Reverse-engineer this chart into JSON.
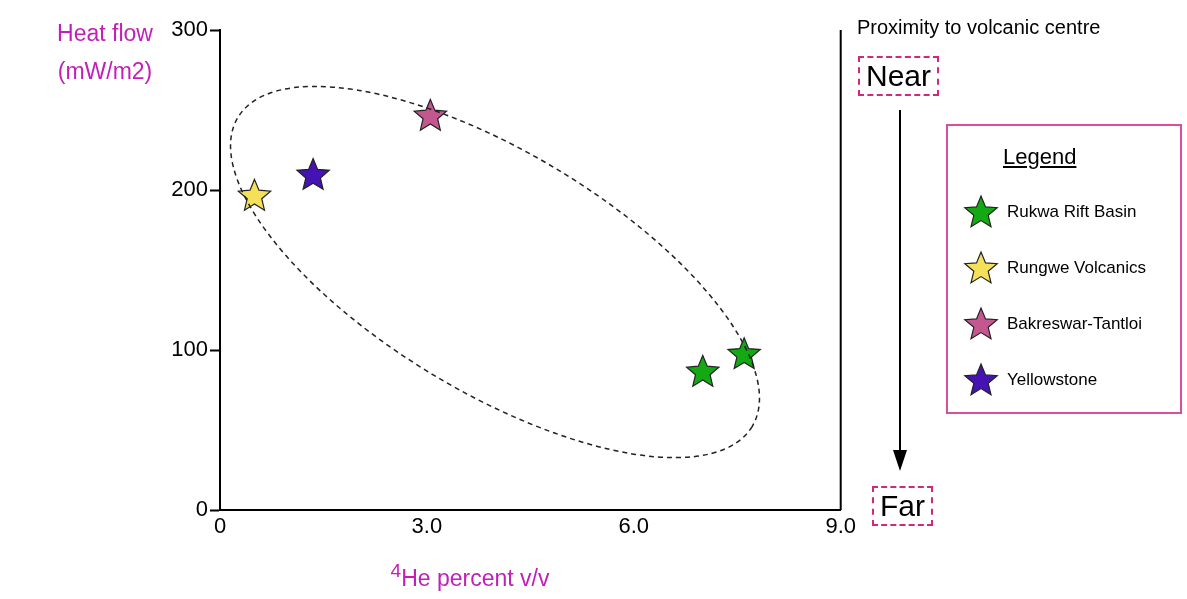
{
  "chart_data": {
    "type": "scatter",
    "xlabel": "$^{4}$He percent v/v",
    "ylabel": "Heat flow (mW/m2)",
    "legend_title": "Legend",
    "xlim": [
      0,
      9
    ],
    "ylim": [
      0,
      300
    ],
    "xticks": [
      0,
      {
        "value": 3,
        "label": "3.0"
      },
      {
        "value": 6,
        "label": "6.0"
      },
      {
        "value": 9,
        "label": "9.0"
      }
    ],
    "yticks": [
      0,
      100,
      200,
      300
    ],
    "grid": false,
    "legend": "right",
    "marker": "star",
    "annotations": [
      "Proximity to volcanic centre",
      "Near",
      "Far"
    ],
    "series": [
      {
        "name": "Rukwa Rift Basin",
        "color": "#13a913",
        "x": [
          7.0,
          7.6
        ],
        "values": [
          86,
          97
        ]
      },
      {
        "name": "Rungwe Volcanics",
        "color": "#f5e05a",
        "x": [
          0.5
        ],
        "values": [
          196
        ]
      },
      {
        "name": "Bakreswar-Tantloi",
        "color": "#c4578f",
        "x": [
          3.05
        ],
        "values": [
          246
        ]
      },
      {
        "name": "Yellowstone",
        "color": "#4512b4",
        "x": [
          1.35
        ],
        "values": [
          209
        ]
      }
    ]
  }
}
